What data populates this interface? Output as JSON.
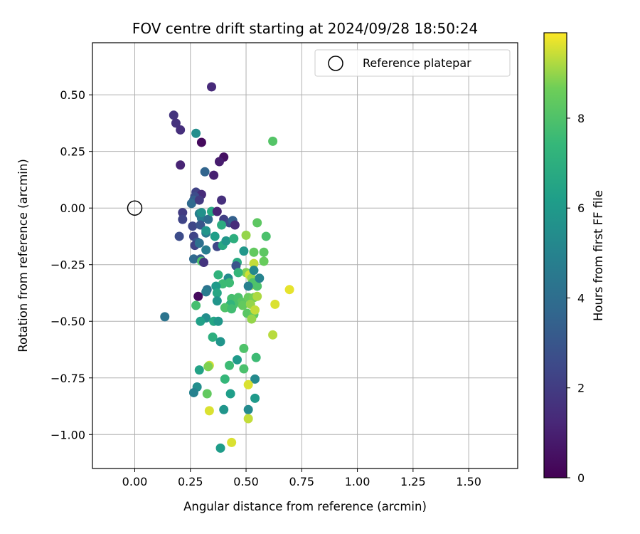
{
  "chart_data": {
    "type": "scatter",
    "title": "FOV centre drift starting at 2024/09/28 18:50:24",
    "xlabel": "Angular distance from reference (arcmin)",
    "ylabel": "Rotation from reference (arcmin)",
    "xlim": [
      -0.19,
      1.72
    ],
    "ylim": [
      -1.15,
      0.73
    ],
    "x_ticks": [
      0.0,
      0.25,
      0.5,
      0.75,
      1.0,
      1.25,
      1.5
    ],
    "x_tick_labels": [
      "0.00",
      "0.25",
      "0.50",
      "0.75",
      "1.00",
      "1.25",
      "1.50"
    ],
    "y_ticks": [
      0.5,
      0.25,
      0.0,
      -0.25,
      -0.5,
      -0.75,
      -1.0
    ],
    "y_tick_labels": [
      "0.50",
      "0.25",
      "0.00",
      "−0.25",
      "−0.50",
      "−0.75",
      "−1.00"
    ],
    "grid": true,
    "legend": {
      "position": "top-right",
      "entries": [
        "Reference platepar"
      ]
    },
    "reference_point": {
      "x": 0.0,
      "y": 0.0
    },
    "colorbar": {
      "label": "Hours from first FF file",
      "range": [
        0,
        9.9
      ],
      "ticks": [
        0,
        2,
        4,
        6,
        8
      ],
      "tick_labels": [
        "0",
        "2",
        "4",
        "6",
        "8"
      ],
      "colormap": "viridis"
    },
    "points": [
      [
        0.345,
        0.535,
        1.3
      ],
      [
        0.175,
        0.41,
        1.7
      ],
      [
        0.185,
        0.375,
        1.6
      ],
      [
        0.205,
        0.345,
        1.5
      ],
      [
        0.3,
        0.29,
        0.3
      ],
      [
        0.4,
        0.225,
        0.5
      ],
      [
        0.38,
        0.205,
        0.9
      ],
      [
        0.205,
        0.19,
        1.1
      ],
      [
        0.355,
        0.145,
        1.0
      ],
      [
        0.315,
        0.16,
        3.6
      ],
      [
        0.275,
        0.33,
        5.5
      ],
      [
        0.62,
        0.295,
        8.1
      ],
      [
        0.275,
        0.07,
        2.2
      ],
      [
        0.3,
        0.06,
        1.4
      ],
      [
        0.27,
        0.05,
        2.6
      ],
      [
        0.265,
        0.035,
        3.3
      ],
      [
        0.255,
        0.02,
        3.8
      ],
      [
        0.29,
        0.035,
        1.9
      ],
      [
        0.39,
        0.035,
        1.5
      ],
      [
        0.215,
        -0.02,
        2.0
      ],
      [
        0.215,
        -0.05,
        2.3
      ],
      [
        0.29,
        -0.025,
        4.8
      ],
      [
        0.3,
        -0.045,
        4.6
      ],
      [
        0.3,
        -0.02,
        5.6
      ],
      [
        0.33,
        -0.05,
        3.9
      ],
      [
        0.345,
        -0.015,
        6.7
      ],
      [
        0.37,
        -0.015,
        1.1
      ],
      [
        0.4,
        -0.05,
        2.1
      ],
      [
        0.425,
        -0.065,
        2.6
      ],
      [
        0.44,
        -0.055,
        3.4
      ],
      [
        0.45,
        -0.075,
        1.4
      ],
      [
        0.39,
        -0.075,
        6.9
      ],
      [
        0.26,
        -0.08,
        2.4
      ],
      [
        0.295,
        -0.075,
        2.9
      ],
      [
        0.32,
        -0.11,
        4.5
      ],
      [
        0.32,
        -0.1,
        5.8
      ],
      [
        0.2,
        -0.125,
        2.6
      ],
      [
        0.265,
        -0.125,
        2.3
      ],
      [
        0.28,
        -0.15,
        3.0
      ],
      [
        0.27,
        -0.165,
        2.2
      ],
      [
        0.29,
        -0.155,
        4.1
      ],
      [
        0.32,
        -0.185,
        4.7
      ],
      [
        0.36,
        -0.125,
        6.2
      ],
      [
        0.37,
        -0.17,
        2.4
      ],
      [
        0.395,
        -0.165,
        6.7
      ],
      [
        0.41,
        -0.145,
        5.9
      ],
      [
        0.445,
        -0.135,
        7.0
      ],
      [
        0.5,
        -0.12,
        9.0
      ],
      [
        0.55,
        -0.065,
        8.3
      ],
      [
        0.59,
        -0.125,
        7.9
      ],
      [
        0.58,
        -0.195,
        8.3
      ],
      [
        0.535,
        -0.195,
        8.4
      ],
      [
        0.49,
        -0.19,
        5.9
      ],
      [
        0.58,
        -0.235,
        8.5
      ],
      [
        0.535,
        -0.245,
        9.4
      ],
      [
        0.46,
        -0.24,
        6.8
      ],
      [
        0.455,
        -0.255,
        2.9
      ],
      [
        0.265,
        -0.225,
        3.8
      ],
      [
        0.295,
        -0.225,
        3.3
      ],
      [
        0.3,
        -0.235,
        8.0
      ],
      [
        0.31,
        -0.24,
        1.7
      ],
      [
        0.5,
        -0.285,
        8.8
      ],
      [
        0.515,
        -0.295,
        9.5
      ],
      [
        0.525,
        -0.31,
        9.0
      ],
      [
        0.535,
        -0.275,
        5.2
      ],
      [
        0.465,
        -0.285,
        7.4
      ],
      [
        0.42,
        -0.31,
        5.4
      ],
      [
        0.375,
        -0.295,
        7.2
      ],
      [
        0.425,
        -0.33,
        7.6
      ],
      [
        0.395,
        -0.335,
        7.6
      ],
      [
        0.365,
        -0.345,
        6.0
      ],
      [
        0.37,
        -0.375,
        6.6
      ],
      [
        0.525,
        -0.34,
        9.2
      ],
      [
        0.55,
        -0.345,
        8.0
      ],
      [
        0.53,
        -0.33,
        8.0
      ],
      [
        0.51,
        -0.345,
        4.8
      ],
      [
        0.56,
        -0.31,
        5.0
      ],
      [
        0.325,
        -0.36,
        4.2
      ],
      [
        0.32,
        -0.37,
        4.6
      ],
      [
        0.285,
        -0.39,
        0.3
      ],
      [
        0.37,
        -0.41,
        5.8
      ],
      [
        0.435,
        -0.4,
        7.8
      ],
      [
        0.465,
        -0.395,
        7.9
      ],
      [
        0.48,
        -0.415,
        8.2
      ],
      [
        0.51,
        -0.395,
        8.5
      ],
      [
        0.535,
        -0.395,
        8.7
      ],
      [
        0.55,
        -0.39,
        9.2
      ],
      [
        0.445,
        -0.425,
        7.9
      ],
      [
        0.43,
        -0.425,
        7.3
      ],
      [
        0.405,
        -0.44,
        8.0
      ],
      [
        0.435,
        -0.445,
        7.7
      ],
      [
        0.485,
        -0.43,
        8.4
      ],
      [
        0.52,
        -0.425,
        9.0
      ],
      [
        0.505,
        -0.465,
        8.2
      ],
      [
        0.535,
        -0.47,
        8.4
      ],
      [
        0.54,
        -0.45,
        9.4
      ],
      [
        0.525,
        -0.49,
        9.0
      ],
      [
        0.275,
        -0.43,
        7.8
      ],
      [
        0.695,
        -0.36,
        9.7
      ],
      [
        0.63,
        -0.425,
        9.6
      ],
      [
        0.135,
        -0.48,
        4.3
      ],
      [
        0.32,
        -0.485,
        5.5
      ],
      [
        0.295,
        -0.5,
        6.3
      ],
      [
        0.355,
        -0.5,
        6.6
      ],
      [
        0.375,
        -0.5,
        5.9
      ],
      [
        0.35,
        -0.57,
        7.0
      ],
      [
        0.385,
        -0.59,
        5.8
      ],
      [
        0.62,
        -0.56,
        9.3
      ],
      [
        0.49,
        -0.62,
        8.0
      ],
      [
        0.545,
        -0.66,
        7.6
      ],
      [
        0.46,
        -0.67,
        6.0
      ],
      [
        0.425,
        -0.695,
        7.6
      ],
      [
        0.49,
        -0.71,
        7.9
      ],
      [
        0.335,
        -0.695,
        9.5
      ],
      [
        0.33,
        -0.7,
        8.8
      ],
      [
        0.29,
        -0.715,
        6.4
      ],
      [
        0.405,
        -0.755,
        7.4
      ],
      [
        0.54,
        -0.755,
        5.3
      ],
      [
        0.51,
        -0.78,
        9.6
      ],
      [
        0.28,
        -0.79,
        5.5
      ],
      [
        0.265,
        -0.815,
        4.9
      ],
      [
        0.43,
        -0.82,
        6.2
      ],
      [
        0.325,
        -0.82,
        8.4
      ],
      [
        0.54,
        -0.84,
        6.0
      ],
      [
        0.335,
        -0.895,
        9.6
      ],
      [
        0.4,
        -0.89,
        5.8
      ],
      [
        0.51,
        -0.89,
        5.3
      ],
      [
        0.51,
        -0.93,
        9.4
      ],
      [
        0.385,
        -1.06,
        6.1
      ],
      [
        0.435,
        -1.035,
        9.6
      ]
    ]
  }
}
